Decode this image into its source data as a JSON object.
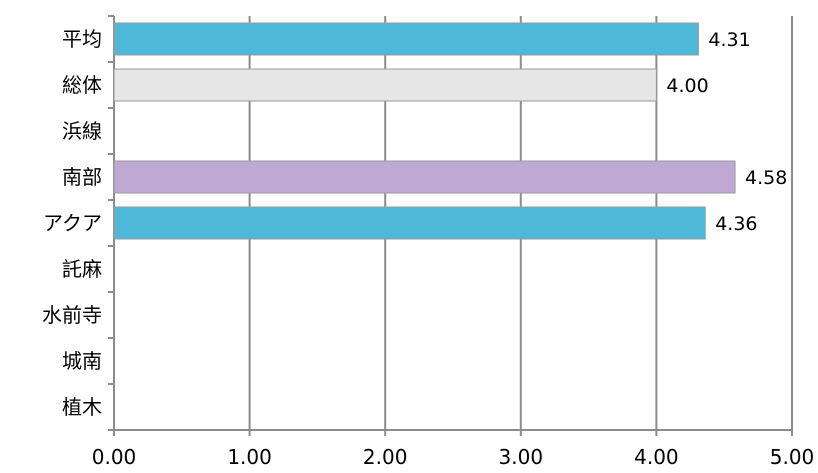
{
  "chart_data": {
    "type": "bar",
    "orientation": "horizontal",
    "categories": [
      "平均",
      "総体",
      "浜線",
      "南部",
      "アクア",
      "託麻",
      "水前寺",
      "城南",
      "植木"
    ],
    "values": [
      4.31,
      4.0,
      null,
      4.58,
      4.36,
      null,
      null,
      null,
      null
    ],
    "data_labels": [
      "4.31",
      "4.00",
      "",
      "4.58",
      "4.36",
      "",
      "",
      "",
      ""
    ],
    "bar_colors": [
      "#4db8d8",
      "#e6e6e6",
      null,
      "#bfa8d4",
      "#4db8d8",
      null,
      null,
      null,
      null
    ],
    "bar_stroke": "#9a9a9a",
    "xlim": [
      0,
      5
    ],
    "xticks": [
      0,
      1,
      2,
      3,
      4,
      5
    ],
    "xtick_labels": [
      "0.00",
      "1.00",
      "2.00",
      "3.00",
      "4.00",
      "5.00"
    ],
    "grid": "vertical",
    "gridline_color": "#8c8c8c",
    "title": "",
    "xlabel": "",
    "ylabel": "",
    "legend": "none"
  }
}
